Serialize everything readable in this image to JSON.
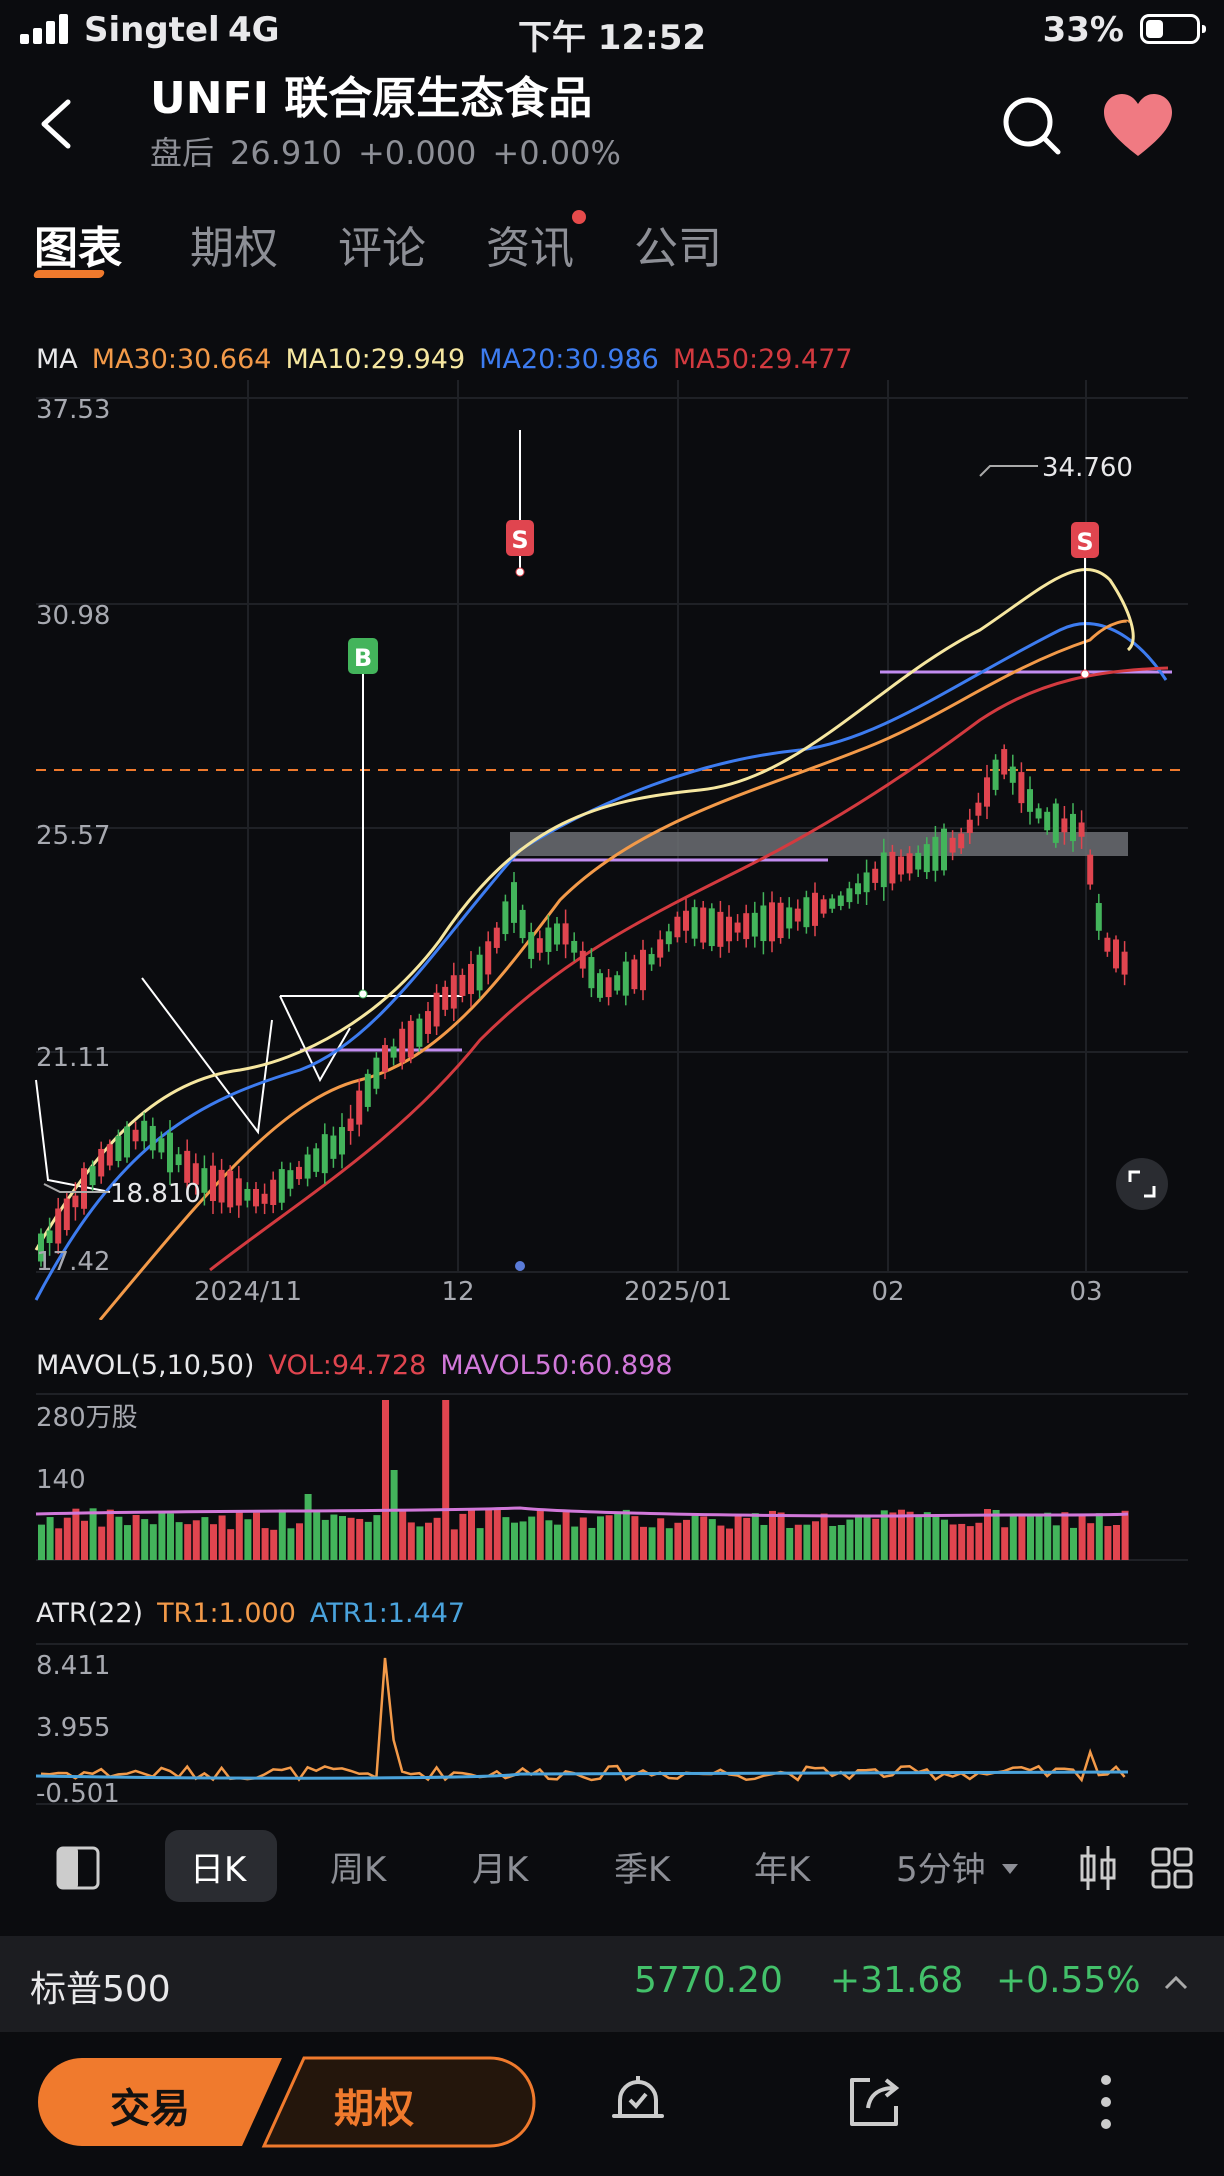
{
  "status_bar": {
    "carrier": "Singtel",
    "network": "4G",
    "time": "下午 12:52",
    "battery": "33%"
  },
  "header": {
    "title": "UNFI  联合原生态食品",
    "after_hours_label": "盘后",
    "price": "26.910",
    "change": "+0.000",
    "change_pct": "+0.00%"
  },
  "tabs": [
    {
      "label": "图表",
      "active": true
    },
    {
      "label": "期权"
    },
    {
      "label": "评论"
    },
    {
      "label": "资讯",
      "badge": true
    },
    {
      "label": "公司"
    }
  ],
  "ma_legend": {
    "label": "MA",
    "ma30": "MA30:30.664",
    "ma10": "MA10:29.949",
    "ma20": "MA20:30.986",
    "ma50": "MA50:29.477"
  },
  "colors": {
    "up": "#43b45b",
    "down": "#e0454f",
    "ma10": "#f6e7a0",
    "ma20": "#3d7cf0",
    "ma30": "#f39a49",
    "ma50": "#d33a3f",
    "accent": "#f07a2d",
    "mavol": "#d178d9",
    "atr_tr": "#f39a49",
    "atr": "#4aa3dc"
  },
  "price_chart": {
    "y_labels": [
      "37.53",
      "30.98",
      "25.57",
      "21.11",
      "17.42"
    ],
    "x_labels": [
      "2024/11",
      "12",
      "2025/01",
      "02",
      "03"
    ],
    "high_label": "34.760",
    "low_label": "18.810",
    "signals": [
      {
        "type": "S"
      },
      {
        "type": "B"
      },
      {
        "type": "S"
      }
    ]
  },
  "mavol_legend": {
    "label": "MAVOL(5,10,50)",
    "vol": "VOL:94.728",
    "mavol50": "MAVOL50:60.898"
  },
  "vol_chart": {
    "y_labels": [
      "280万股",
      "140"
    ]
  },
  "atr_legend": {
    "label": "ATR(22)",
    "tr": "TR1:1.000",
    "atr": "ATR1:1.447"
  },
  "atr_chart": {
    "y_labels": [
      "8.411",
      "3.955",
      "-0.501"
    ]
  },
  "periods": [
    {
      "label": "日K",
      "active": true
    },
    {
      "label": "周K"
    },
    {
      "label": "月K"
    },
    {
      "label": "季K"
    },
    {
      "label": "年K"
    },
    {
      "label": "5分钟"
    }
  ],
  "index": {
    "name": "标普500",
    "value": "5770.20",
    "change": "+31.68",
    "change_pct": "+0.55%"
  },
  "bottom": {
    "trade_label": "交易",
    "options_label": "期权"
  }
}
